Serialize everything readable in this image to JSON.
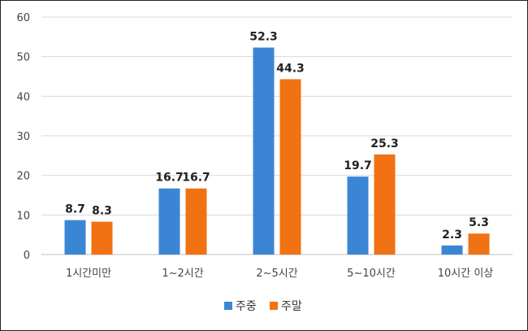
{
  "chart_data": {
    "type": "bar",
    "categories": [
      "1시간미만",
      "1~2시간",
      "2~5시간",
      "5~10시간",
      "10시간 이상"
    ],
    "series": [
      {
        "name": "주중",
        "values": [
          8.7,
          16.7,
          52.3,
          19.7,
          2.3
        ],
        "color": "#3B86D4"
      },
      {
        "name": "주말",
        "values": [
          8.3,
          16.7,
          44.3,
          25.3,
          5.3
        ],
        "color": "#F07213"
      }
    ],
    "ylim": [
      0,
      60
    ],
    "yticks": [
      0,
      10,
      20,
      30,
      40,
      50,
      60
    ],
    "grid": true,
    "legend": "bottom",
    "title": "",
    "xlabel": "",
    "ylabel": ""
  }
}
